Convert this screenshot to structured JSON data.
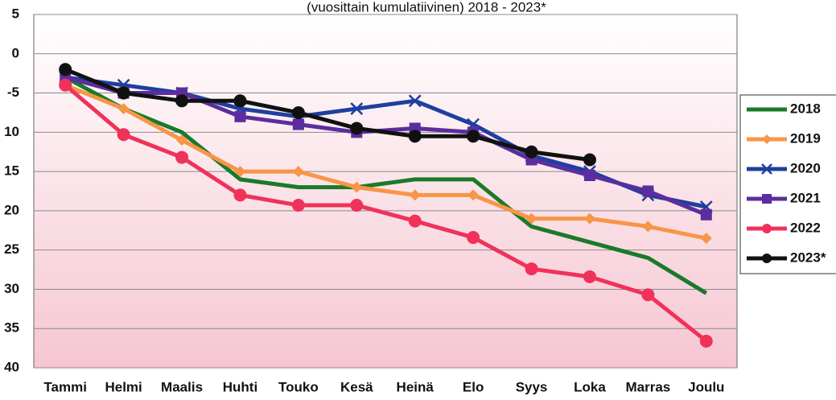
{
  "chart_data": {
    "type": "line",
    "title": "(vuosittain kumulatiivinen) 2018 - 2023*",
    "categories": [
      "Tammi",
      "Helmi",
      "Maalis",
      "Huhti",
      "Touko",
      "Kesä",
      "Heinä",
      "Elo",
      "Syys",
      "Loka",
      "Marras",
      "Joulu"
    ],
    "series": [
      {
        "name": "2018",
        "color": "#1a7a2a",
        "marker": "none",
        "values": [
          -3,
          -7,
          -10,
          -16,
          -17,
          -17,
          -16,
          -16,
          -22,
          -24,
          -26,
          -30.5
        ]
      },
      {
        "name": "2019",
        "color": "#f79646",
        "marker": "diamond",
        "values": [
          -4,
          -7,
          -11,
          -15,
          -15,
          -17,
          -18,
          -18,
          -21,
          -21,
          -22,
          -23.5
        ]
      },
      {
        "name": "2020",
        "color": "#1f3fa0",
        "marker": "x",
        "values": [
          -3,
          -4,
          -5,
          -7,
          -8,
          -7,
          -6,
          -9,
          -13,
          -15,
          -18,
          -19.5
        ]
      },
      {
        "name": "2021",
        "color": "#5b2d9e",
        "marker": "square",
        "values": [
          -3,
          -5,
          -5,
          -8,
          -9,
          -10,
          -9.5,
          -10,
          -13.5,
          -15.5,
          -17.5,
          -20.5
        ]
      },
      {
        "name": "2022",
        "color": "#f0325a",
        "marker": "circle",
        "values": [
          -4,
          -10.3,
          -13.2,
          -18,
          -19.3,
          -19.3,
          -21.3,
          -23.4,
          -27.4,
          -28.4,
          -30.7,
          -36.6
        ]
      },
      {
        "name": "2023*",
        "color": "#111111",
        "marker": "circle",
        "values": [
          -2,
          -5,
          -6,
          -6,
          -7.5,
          -9.5,
          -10.5,
          -10.5,
          -12.5,
          -13.5,
          null,
          null
        ]
      }
    ],
    "ylim": [
      -40,
      5
    ],
    "yticks": [
      {
        "value": -40,
        "label": "40"
      },
      {
        "value": -35,
        "label": "35"
      },
      {
        "value": -30,
        "label": "30"
      },
      {
        "value": -25,
        "label": "25"
      },
      {
        "value": -20,
        "label": "20"
      },
      {
        "value": -15,
        "label": "15"
      },
      {
        "value": -10,
        "label": "10"
      },
      -5,
      0,
      5
    ],
    "grid": true
  }
}
